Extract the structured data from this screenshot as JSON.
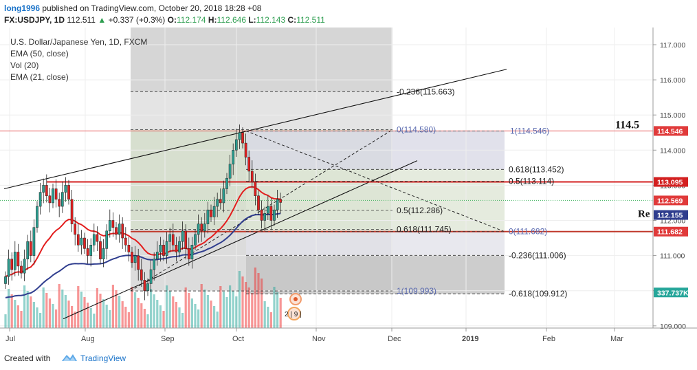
{
  "header": {
    "user": "long1996",
    "published_text": " published on TradingView.com, October 20, 2018 18:28 +08",
    "symbol": "FX:USDJPY, 1D",
    "last": "112.511",
    "change": "+0.337 (+0.3%)",
    "o_label": "O:",
    "o_val": "112.174",
    "h_label": "H:",
    "h_val": "112.646",
    "l_label": "L:",
    "l_val": "112.143",
    "c_label": "C:",
    "c_val": "112.511"
  },
  "legend": {
    "title": "U.S. Dollar/Japanese Yen, 1D, FXCM",
    "ema50": "EMA (50, close)",
    "vol": "Vol (20)",
    "ema21": "EMA (21, close)"
  },
  "annotations": {
    "level_text": "114.5",
    "re_text": "Re",
    "circle_text": "2 | 9 |",
    "fib": [
      {
        "text": "-0.236(115.663)",
        "price": 115.663
      },
      {
        "text": "0(114.580)",
        "price": 114.58
      },
      {
        "text": "1(114.546)",
        "price": 114.546
      },
      {
        "text": "0.618(113.452)",
        "price": 113.452
      },
      {
        "text": "0.5(113.114)",
        "price": 113.114
      },
      {
        "text": "0.5(112.286)",
        "price": 112.286
      },
      {
        "text": "0.618(111.745)",
        "price": 111.745
      },
      {
        "text": "0(111.682)",
        "price": 111.682
      },
      {
        "text": "-0.236(111.006)",
        "price": 111.006
      },
      {
        "text": "1(109.993)",
        "price": 109.993
      },
      {
        "text": "-0.618(109.912)",
        "price": 109.912
      }
    ]
  },
  "axis": {
    "price_ticks": [
      "117.000",
      "116.000",
      "115.000",
      "114.000",
      "113.000",
      "112.000",
      "111.000",
      "110.000",
      "109.000"
    ],
    "price_values": [
      117,
      116,
      115,
      114,
      113,
      112,
      111,
      110,
      109
    ],
    "time_ticks": [
      "Jul",
      "Aug",
      "Sep",
      "Oct",
      "Nov",
      "Dec",
      "2019",
      "Feb",
      "Mar"
    ],
    "badges": [
      {
        "text": "114.546",
        "price": 114.546,
        "color": "#e03a3a"
      },
      {
        "text": "113.095",
        "price": 113.095,
        "color": "#d32020"
      },
      {
        "text": "112.569",
        "price": 112.569,
        "color": "#e03a3a"
      },
      {
        "text": "112.155",
        "price": 112.155,
        "color": "#2f3d8e"
      },
      {
        "text": "111.682",
        "price": 111.682,
        "color": "#e03a3a"
      },
      {
        "text": "337.737K",
        "price": 109.95,
        "color": "#26a69a"
      }
    ]
  },
  "colors": {
    "up": "#26a69a",
    "down": "#ef2e2e",
    "ema21": "#e31e1e",
    "ema50": "#2f3d8e",
    "hline": "#d32020"
  },
  "footer": {
    "created": "Created with",
    "brand": "TradingView"
  }
}
